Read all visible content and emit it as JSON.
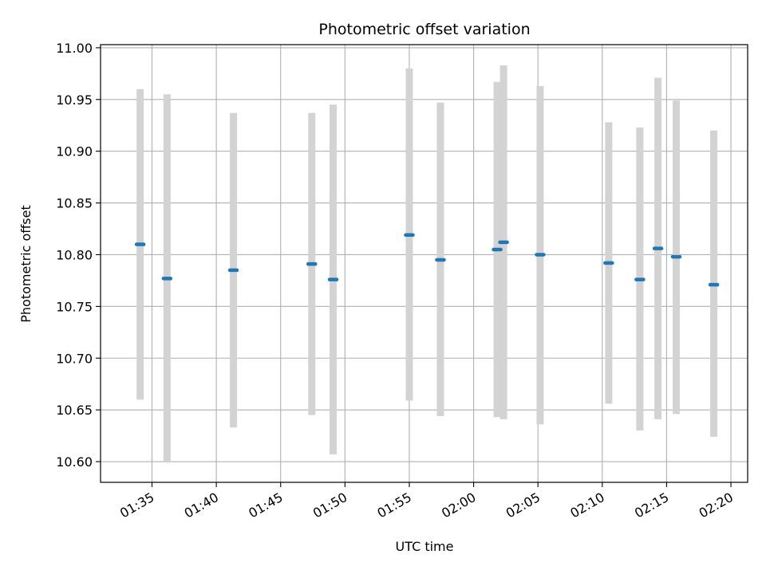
{
  "chart_data": {
    "type": "scatter",
    "title": "Photometric offset variation",
    "xlabel": "UTC time",
    "ylabel": "Photometric offset",
    "x_ticks": [
      "01:35",
      "01:40",
      "01:45",
      "01:50",
      "01:55",
      "02:00",
      "02:05",
      "02:10",
      "02:15",
      "02:20"
    ],
    "x_tick_minutes": [
      95,
      100,
      105,
      110,
      115,
      120,
      125,
      130,
      135,
      140
    ],
    "xlim_minutes": [
      91.0,
      141.3
    ],
    "y_ticks": [
      "10.60",
      "10.65",
      "10.70",
      "10.75",
      "10.80",
      "10.85",
      "10.90",
      "10.95",
      "11.00"
    ],
    "ylim": [
      10.58,
      11.003
    ],
    "grid": true,
    "colors": {
      "marker": "#1f77b4",
      "errorbar": "#d3d3d3",
      "grid": "#b0b0b0"
    },
    "series": [
      {
        "points": [
          {
            "t": "01:34:05",
            "minutes": 94.08,
            "y": 10.81,
            "ylow": 10.66,
            "yhigh": 10.96
          },
          {
            "t": "01:36:10",
            "minutes": 96.17,
            "y": 10.777,
            "ylow": 10.599,
            "yhigh": 10.955
          },
          {
            "t": "01:41:20",
            "minutes": 101.33,
            "y": 10.785,
            "ylow": 10.633,
            "yhigh": 10.937
          },
          {
            "t": "01:47:25",
            "minutes": 107.42,
            "y": 10.791,
            "ylow": 10.645,
            "yhigh": 10.937
          },
          {
            "t": "01:49:05",
            "minutes": 109.08,
            "y": 10.776,
            "ylow": 10.607,
            "yhigh": 10.945
          },
          {
            "t": "01:55:00",
            "minutes": 115.0,
            "y": 10.819,
            "ylow": 10.659,
            "yhigh": 10.98
          },
          {
            "t": "01:57:25",
            "minutes": 117.42,
            "y": 10.795,
            "ylow": 10.644,
            "yhigh": 10.947
          },
          {
            "t": "02:01:50",
            "minutes": 121.83,
            "y": 10.805,
            "ylow": 10.643,
            "yhigh": 10.967
          },
          {
            "t": "02:02:20",
            "minutes": 122.33,
            "y": 10.812,
            "ylow": 10.641,
            "yhigh": 10.983
          },
          {
            "t": "02:05:10",
            "minutes": 125.17,
            "y": 10.8,
            "ylow": 10.636,
            "yhigh": 10.963
          },
          {
            "t": "02:10:30",
            "minutes": 130.5,
            "y": 10.792,
            "ylow": 10.656,
            "yhigh": 10.928
          },
          {
            "t": "02:12:55",
            "minutes": 132.92,
            "y": 10.776,
            "ylow": 10.63,
            "yhigh": 10.923
          },
          {
            "t": "02:14:20",
            "minutes": 134.33,
            "y": 10.806,
            "ylow": 10.641,
            "yhigh": 10.971
          },
          {
            "t": "02:15:45",
            "minutes": 135.75,
            "y": 10.798,
            "ylow": 10.646,
            "yhigh": 10.949
          },
          {
            "t": "02:18:40",
            "minutes": 138.67,
            "y": 10.771,
            "ylow": 10.624,
            "yhigh": 10.92
          }
        ]
      }
    ]
  }
}
